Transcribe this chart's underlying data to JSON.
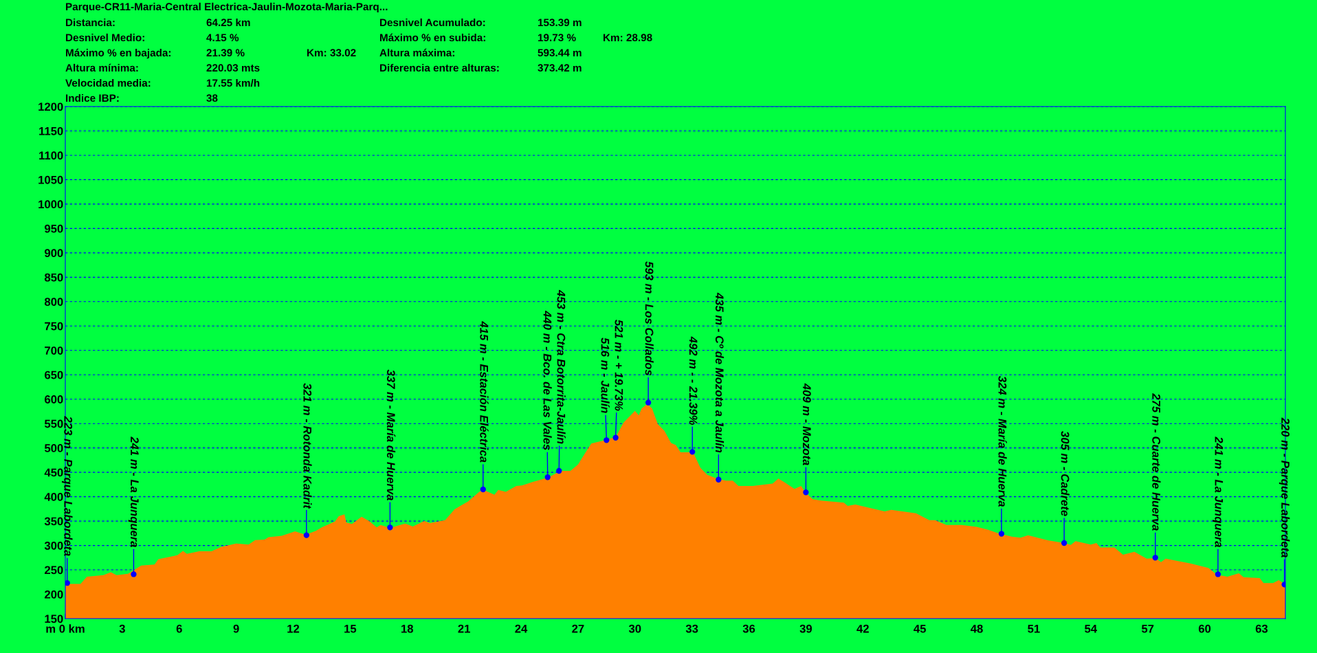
{
  "chart_data": {
    "type": "area",
    "title": "Parque-CR11-Maria-Central Electrica-Jaulin-Mozota-Maria-Parq...",
    "x": [
      0,
      0.8,
      1.14,
      2.0,
      2.4,
      2.7,
      3.3,
      4.0,
      4.7,
      4.9,
      5.9,
      6.2,
      6.4,
      7.05,
      7.7,
      8.2,
      9.0,
      9.65,
      10.0,
      10.5,
      10.7,
      11.4,
      12.1,
      12.65,
      13.2,
      13.5,
      14.2,
      14.4,
      14.7,
      14.8,
      15.1,
      15.6,
      16.0,
      16.4,
      16.6,
      17.1,
      17.9,
      18.3,
      18.9,
      19.2,
      20.0,
      20.5,
      20.8,
      21.2,
      21.8,
      22.0,
      22.25,
      22.6,
      22.8,
      23.2,
      23.75,
      24.05,
      24.6,
      25.4,
      26.1,
      26.6,
      27.0,
      27.35,
      27.7,
      28.55,
      29.0,
      29.4,
      30.0,
      30.2,
      30.35,
      30.65,
      30.9,
      31.2,
      31.55,
      31.9,
      32.15,
      32.4,
      32.9,
      33.1,
      33.45,
      33.8,
      34.4,
      34.8,
      35.15,
      35.45,
      36.2,
      36.65,
      37.25,
      37.55,
      37.85,
      38.4,
      38.75,
      38.95,
      39.35,
      39.8,
      41.0,
      41.2,
      41.6,
      43.15,
      43.5,
      44.8,
      45.5,
      45.8,
      46.4,
      47.2,
      48.0,
      48.6,
      49.2,
      49.85,
      50.3,
      50.7,
      51.7,
      52.6,
      52.95,
      53.2,
      54.0,
      54.3,
      54.5,
      55.25,
      55.7,
      56.3,
      56.95,
      57.4,
      57.7,
      57.95,
      59.25,
      60.2,
      60.65,
      61.2,
      61.8,
      62.05,
      62.9,
      63.1,
      63.6,
      63.9,
      64.25
    ],
    "series": [
      {
        "color": "#ff8000",
        "values": [
          221,
          221,
          236,
          239,
          245,
          239,
          242,
          259,
          261,
          272,
          280,
          289,
          283,
          288,
          288,
          297,
          304,
          302,
          311,
          312,
          317,
          320,
          329,
          322,
          330,
          337,
          349,
          360,
          364,
          347,
          344,
          359,
          350,
          337,
          342,
          336,
          345,
          339,
          350,
          346,
          352,
          374,
          381,
          390,
          410,
          414,
          410,
          404,
          414,
          410,
          422,
          423,
          430,
          439,
          453,
          453,
          466,
          488,
          509,
          517,
          523,
          552,
          576,
          567,
          581,
          590,
          581,
          549,
          535,
          510,
          506,
          491,
          491,
          488,
          459,
          445,
          436,
          433,
          433,
          422,
          422,
          424,
          427,
          437,
          430,
          416,
          422,
          410,
          395,
          392,
          388,
          381,
          384,
          370,
          373,
          366,
          352,
          352,
          342,
          342,
          338,
          332,
          324,
          318,
          316,
          321,
          311,
          305,
          301,
          309,
          302,
          305,
          296,
          296,
          281,
          287,
          273,
          274,
          266,
          273,
          263,
          254,
          240,
          236,
          243,
          235,
          233,
          223,
          223,
          229,
          220
        ]
      }
    ],
    "xlim": [
      0,
      64.25
    ],
    "xticks": [
      {
        "value": 0,
        "label": "m 0 km"
      },
      3,
      6,
      9,
      12,
      15,
      18,
      21,
      24,
      27,
      30,
      33,
      36,
      39,
      42,
      45,
      48,
      51,
      54,
      57,
      60,
      63
    ],
    "ylim": [
      150,
      1200
    ],
    "yticks": [
      150,
      200,
      250,
      300,
      350,
      400,
      450,
      500,
      550,
      600,
      650,
      700,
      750,
      800,
      850,
      900,
      950,
      1000,
      1050,
      1100,
      1150,
      1200
    ],
    "grid": "y",
    "annotations": [
      "Distancia:\t64.25 km",
      "Desnivel Medio:\t4.15 %",
      "Máximo % en bajada:\t21.39 %\tKm: 33.02",
      "Altura mínima:\t220.03 mts",
      "Velocidad media:\t17.55 km/h",
      "Indice IBP:\t38",
      "Desnivel Acumulado:\t153.39 m",
      "Máximo % en subida:\t19.73 %\tKm: 28.98",
      "Altura máxima:\t593.44 m",
      "Diferencia entre alturas:\t373.42 m",
      {
        "text": "223 m - Parque Labordeta",
        "x": 0.1,
        "y": 223
      },
      {
        "text": "241 m - La Junquera",
        "x": 3.6,
        "y": 241
      },
      {
        "text": "321 m - Rotonda Kadrit",
        "x": 12.7,
        "y": 321
      },
      {
        "text": "337 m - María de Huerva",
        "x": 17.1,
        "y": 337
      },
      {
        "text": "415 m - Estación Eléctrica",
        "x": 22.0,
        "y": 415
      },
      {
        "text": "440 m - Bco. de Las Vales",
        "x": 25.4,
        "y": 440
      },
      {
        "text": "453 m - Ctra Botorrita-Jaulín",
        "x": 26.0,
        "y": 453
      },
      {
        "text": "516 m - Jaulín",
        "x": 28.5,
        "y": 516
      },
      {
        "text": "521 m - + 19.73%",
        "x": 28.98,
        "y": 521
      },
      {
        "text": "593 m - Los Collados",
        "x": 30.7,
        "y": 593
      },
      {
        "text": "492 m - - 21.39%",
        "x": 33.02,
        "y": 492
      },
      {
        "text": "435 m - Cº de Mozota a Jaulín",
        "x": 34.4,
        "y": 435
      },
      {
        "text": "409 m - Mozota",
        "x": 39.0,
        "y": 409
      },
      {
        "text": "324 m - María de Huerva",
        "x": 49.3,
        "y": 324
      },
      {
        "text": "305 m - Cadrete",
        "x": 52.6,
        "y": 305
      },
      {
        "text": "275 m - Cuarte de Huerva",
        "x": 57.4,
        "y": 275
      },
      {
        "text": "241 m - La Junquera",
        "x": 60.7,
        "y": 241
      },
      {
        "text": "220 m - Parque Labordeta",
        "x": 64.2,
        "y": 220
      }
    ]
  }
}
